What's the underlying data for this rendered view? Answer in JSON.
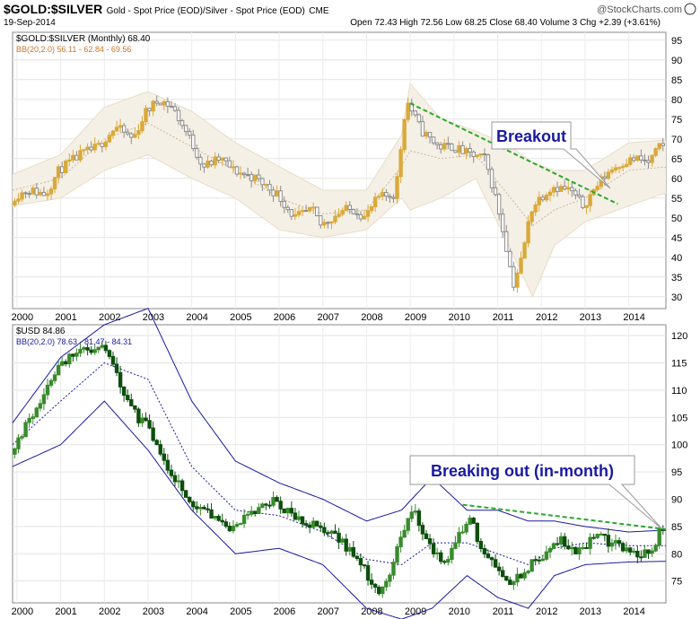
{
  "header": {
    "symbol": "$GOLD:$SILVER",
    "description": "Gold - Spot Price (EOD)/Silver - Spot Price (EOD)",
    "exchange": "CME",
    "date": "19-Sep-2014",
    "brand": "@StockCharts.com",
    "ohlc_text": "Open 72.43  High 72.56  Low 68.25  Close 68.40  Volume 3  Chg +2.39 (+3.61%)"
  },
  "chart_data": [
    {
      "type": "candlestick",
      "legend_main": "$GOLD:$SILVER (Monthly) 68.40",
      "legend_bb": "BB(20,2.0) 56.11 - 62.84 - 69.56",
      "annotation": "Breakout",
      "x_ticks": [
        "2000",
        "2001",
        "2002",
        "2003",
        "2004",
        "2005",
        "2006",
        "2007",
        "2008",
        "2009",
        "2010",
        "2011",
        "2012",
        "2013",
        "2014"
      ],
      "y_ticks": [
        30,
        35,
        40,
        45,
        50,
        55,
        60,
        65,
        70,
        75,
        80,
        85,
        90,
        95
      ],
      "ylim": [
        27,
        97
      ],
      "xlim": [
        1999.9,
        2014.85
      ],
      "anchors": [
        [
          1999.9,
          55
        ],
        [
          2000.3,
          57
        ],
        [
          2000.7,
          56
        ],
        [
          2001.0,
          62
        ],
        [
          2001.5,
          66
        ],
        [
          2001.9,
          68
        ],
        [
          2002.3,
          73
        ],
        [
          2002.7,
          70
        ],
        [
          2003.0,
          77
        ],
        [
          2003.3,
          80
        ],
        [
          2003.6,
          78
        ],
        [
          2004.0,
          70
        ],
        [
          2004.3,
          63
        ],
        [
          2004.7,
          65
        ],
        [
          2005.0,
          62
        ],
        [
          2005.5,
          60
        ],
        [
          2006.0,
          56
        ],
        [
          2006.4,
          50
        ],
        [
          2006.8,
          52
        ],
        [
          2007.0,
          48
        ],
        [
          2007.5,
          52
        ],
        [
          2007.8,
          52
        ],
        [
          2008.0,
          50
        ],
        [
          2008.3,
          55
        ],
        [
          2008.7,
          56
        ],
        [
          2008.85,
          70
        ],
        [
          2008.95,
          80
        ],
        [
          2009.3,
          72
        ],
        [
          2009.7,
          68
        ],
        [
          2010.0,
          68
        ],
        [
          2010.4,
          66
        ],
        [
          2010.75,
          65
        ],
        [
          2011.0,
          55
        ],
        [
          2011.2,
          45
        ],
        [
          2011.4,
          33
        ],
        [
          2011.6,
          40
        ],
        [
          2011.8,
          52
        ],
        [
          2012.0,
          55
        ],
        [
          2012.3,
          58
        ],
        [
          2012.7,
          57
        ],
        [
          2013.0,
          53
        ],
        [
          2013.3,
          58
        ],
        [
          2013.6,
          62
        ],
        [
          2013.9,
          64
        ],
        [
          2014.2,
          65
        ],
        [
          2014.5,
          64
        ],
        [
          2014.75,
          68
        ]
      ],
      "bb_anchors": [
        [
          1999.9,
          53,
          57,
          61
        ],
        [
          2001.0,
          55,
          60,
          66
        ],
        [
          2002.0,
          62,
          70,
          78
        ],
        [
          2003.0,
          66,
          74,
          82
        ],
        [
          2004.0,
          60,
          68,
          77
        ],
        [
          2005.0,
          55,
          62,
          69
        ],
        [
          2006.0,
          47,
          55,
          63
        ],
        [
          2007.0,
          45,
          51,
          57
        ],
        [
          2008.0,
          47,
          52,
          57
        ],
        [
          2008.8,
          55,
          63,
          71
        ],
        [
          2009.0,
          52,
          67,
          84
        ],
        [
          2009.7,
          55,
          65,
          75
        ],
        [
          2010.5,
          60,
          66,
          72
        ],
        [
          2011.3,
          42,
          55,
          68
        ],
        [
          2011.8,
          30,
          48,
          64
        ],
        [
          2012.3,
          43,
          52,
          62
        ],
        [
          2013.0,
          49,
          55,
          62
        ],
        [
          2014.0,
          53,
          62,
          69
        ],
        [
          2014.75,
          56,
          62.8,
          69.6
        ]
      ],
      "trendline": [
        [
          2009.0,
          79
        ],
        [
          2013.75,
          53.5
        ]
      ]
    },
    {
      "type": "candlestick",
      "legend_main": "$USD 84.86",
      "legend_bb": "BB(20,2.0) 78.63 - 81.47 - 84.31",
      "annotation": "Breaking out (in-month)",
      "x_ticks": [
        "2000",
        "2001",
        "2002",
        "2003",
        "2004",
        "2005",
        "2006",
        "2007",
        "2008",
        "2009",
        "2010",
        "2011",
        "2012",
        "2013",
        "2014"
      ],
      "y_ticks": [
        75,
        80,
        85,
        90,
        95,
        100,
        105,
        110,
        115,
        120
      ],
      "ylim": [
        71,
        122
      ],
      "xlim": [
        1999.9,
        2014.85
      ],
      "anchors": [
        [
          1999.9,
          99
        ],
        [
          2000.3,
          104
        ],
        [
          2000.7,
          110
        ],
        [
          2001.0,
          115
        ],
        [
          2001.5,
          117
        ],
        [
          2001.9,
          117
        ],
        [
          2002.1,
          118
        ],
        [
          2002.4,
          111
        ],
        [
          2002.8,
          105
        ],
        [
          2003.0,
          104
        ],
        [
          2003.3,
          98
        ],
        [
          2003.8,
          92
        ],
        [
          2004.0,
          90
        ],
        [
          2004.3,
          88
        ],
        [
          2004.6,
          87
        ],
        [
          2004.9,
          84
        ],
        [
          2005.2,
          86
        ],
        [
          2005.6,
          88
        ],
        [
          2005.95,
          90
        ],
        [
          2006.2,
          88
        ],
        [
          2006.6,
          86
        ],
        [
          2006.9,
          85
        ],
        [
          2007.3,
          84
        ],
        [
          2007.7,
          80
        ],
        [
          2008.0,
          77
        ],
        [
          2008.3,
          73
        ],
        [
          2008.6,
          76
        ],
        [
          2008.85,
          84
        ],
        [
          2009.1,
          88
        ],
        [
          2009.4,
          83
        ],
        [
          2009.8,
          78
        ],
        [
          2010.0,
          81
        ],
        [
          2010.4,
          87
        ],
        [
          2010.7,
          80
        ],
        [
          2011.0,
          78
        ],
        [
          2011.3,
          75
        ],
        [
          2011.6,
          76
        ],
        [
          2011.9,
          79
        ],
        [
          2012.2,
          80
        ],
        [
          2012.5,
          83
        ],
        [
          2012.8,
          80
        ],
        [
          2013.0,
          81
        ],
        [
          2013.3,
          84
        ],
        [
          2013.6,
          82
        ],
        [
          2014.0,
          81
        ],
        [
          2014.3,
          80
        ],
        [
          2014.6,
          80.5
        ],
        [
          2014.75,
          84.8
        ]
      ],
      "bb_anchors": [
        [
          1999.9,
          96,
          100,
          104
        ],
        [
          2001.0,
          100,
          108,
          116
        ],
        [
          2002.0,
          108,
          115,
          122
        ],
        [
          2003.0,
          99,
          112,
          125
        ],
        [
          2004.0,
          88,
          96,
          108
        ],
        [
          2005.0,
          80,
          88,
          97
        ],
        [
          2006.0,
          81,
          87,
          93
        ],
        [
          2007.0,
          78,
          84,
          90
        ],
        [
          2008.0,
          70,
          79,
          86
        ],
        [
          2008.8,
          68,
          78,
          88
        ],
        [
          2009.5,
          70,
          82,
          94
        ],
        [
          2010.3,
          76,
          82,
          88
        ],
        [
          2011.0,
          72,
          80,
          88
        ],
        [
          2011.7,
          70,
          78,
          86
        ],
        [
          2012.3,
          76,
          81,
          86
        ],
        [
          2013.0,
          78,
          82,
          85
        ],
        [
          2014.0,
          78.5,
          81.5,
          84
        ],
        [
          2014.75,
          78.6,
          81.5,
          84.3
        ]
      ],
      "trendline": [
        [
          2010.2,
          89
        ],
        [
          2014.85,
          84.5
        ]
      ]
    }
  ],
  "colors": {
    "upper_up": "#d9a93a",
    "upper_down": "#8c8c8c",
    "lower_up": "#3a8a2e",
    "lower_down": "#0e4f0e",
    "bb_fill": "#f5f0e6",
    "bb_line_lower": "#1a1aa0",
    "trend": "#2aa82a",
    "annot_text": "#1a1aa0"
  }
}
